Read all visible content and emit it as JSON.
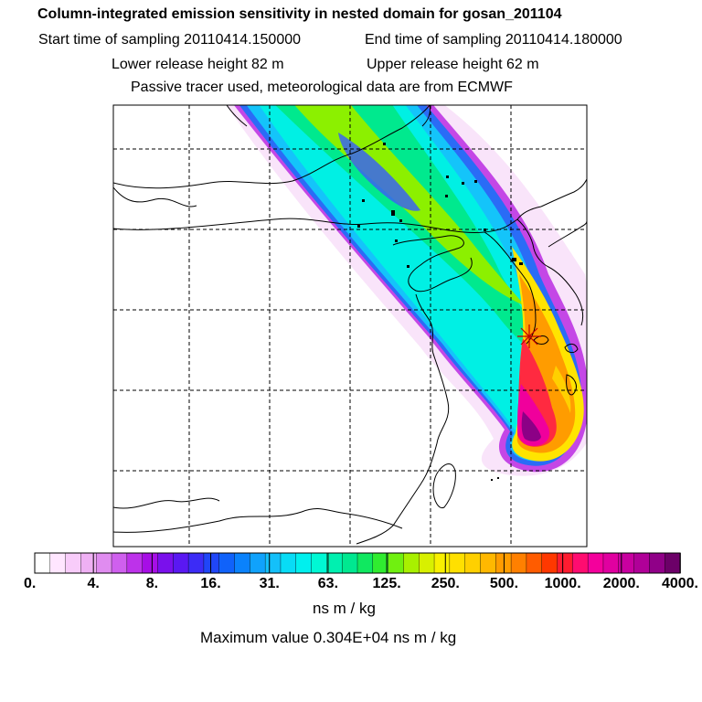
{
  "header": {
    "title": "Column-integrated emission sensitivity in nested domain for gosan_201104",
    "start_label": "Start time of sampling 20110414.150000",
    "end_label": "End time of sampling 20110414.180000",
    "lower_label": "Lower release height   82 m",
    "upper_label": "Upper release height   62 m",
    "info": "Passive tracer used, meteorological data are from ECMWF"
  },
  "colorbar": {
    "tick_labels": [
      "0.",
      "4.",
      "8.",
      "16.",
      "31.",
      "63.",
      "125.",
      "250.",
      "500.",
      "1000.",
      "2000.",
      "4000."
    ],
    "unit": "ns m / kg",
    "colors": [
      "#ffffff",
      "#ffe6ff",
      "#f8ccfa",
      "#efb0f4",
      "#e08cf0",
      "#cf60ee",
      "#bd32ea",
      "#a70ee6",
      "#7a10ec",
      "#5a18f2",
      "#3c2cf6",
      "#2046f8",
      "#1062fa",
      "#0a82fc",
      "#10a2fc",
      "#14c0fa",
      "#08dcf6",
      "#00f0ee",
      "#00f8d4",
      "#00f0b0",
      "#00e890",
      "#10e860",
      "#30ec30",
      "#70f010",
      "#a8f000",
      "#d8f000",
      "#f8f000",
      "#ffe000",
      "#ffd000",
      "#ffb800",
      "#ff9c00",
      "#ff8000",
      "#ff5c00",
      "#ff3800",
      "#ff1c30",
      "#ff0c70",
      "#f4009c",
      "#e000a0",
      "#c800a0",
      "#b00098",
      "#900088",
      "#6c0068"
    ]
  },
  "footer": {
    "max_value": "Maximum value  0.304E+04 ns m / kg"
  },
  "map": {
    "receptor_marker": "star-marker",
    "gridlines": "dashed"
  }
}
